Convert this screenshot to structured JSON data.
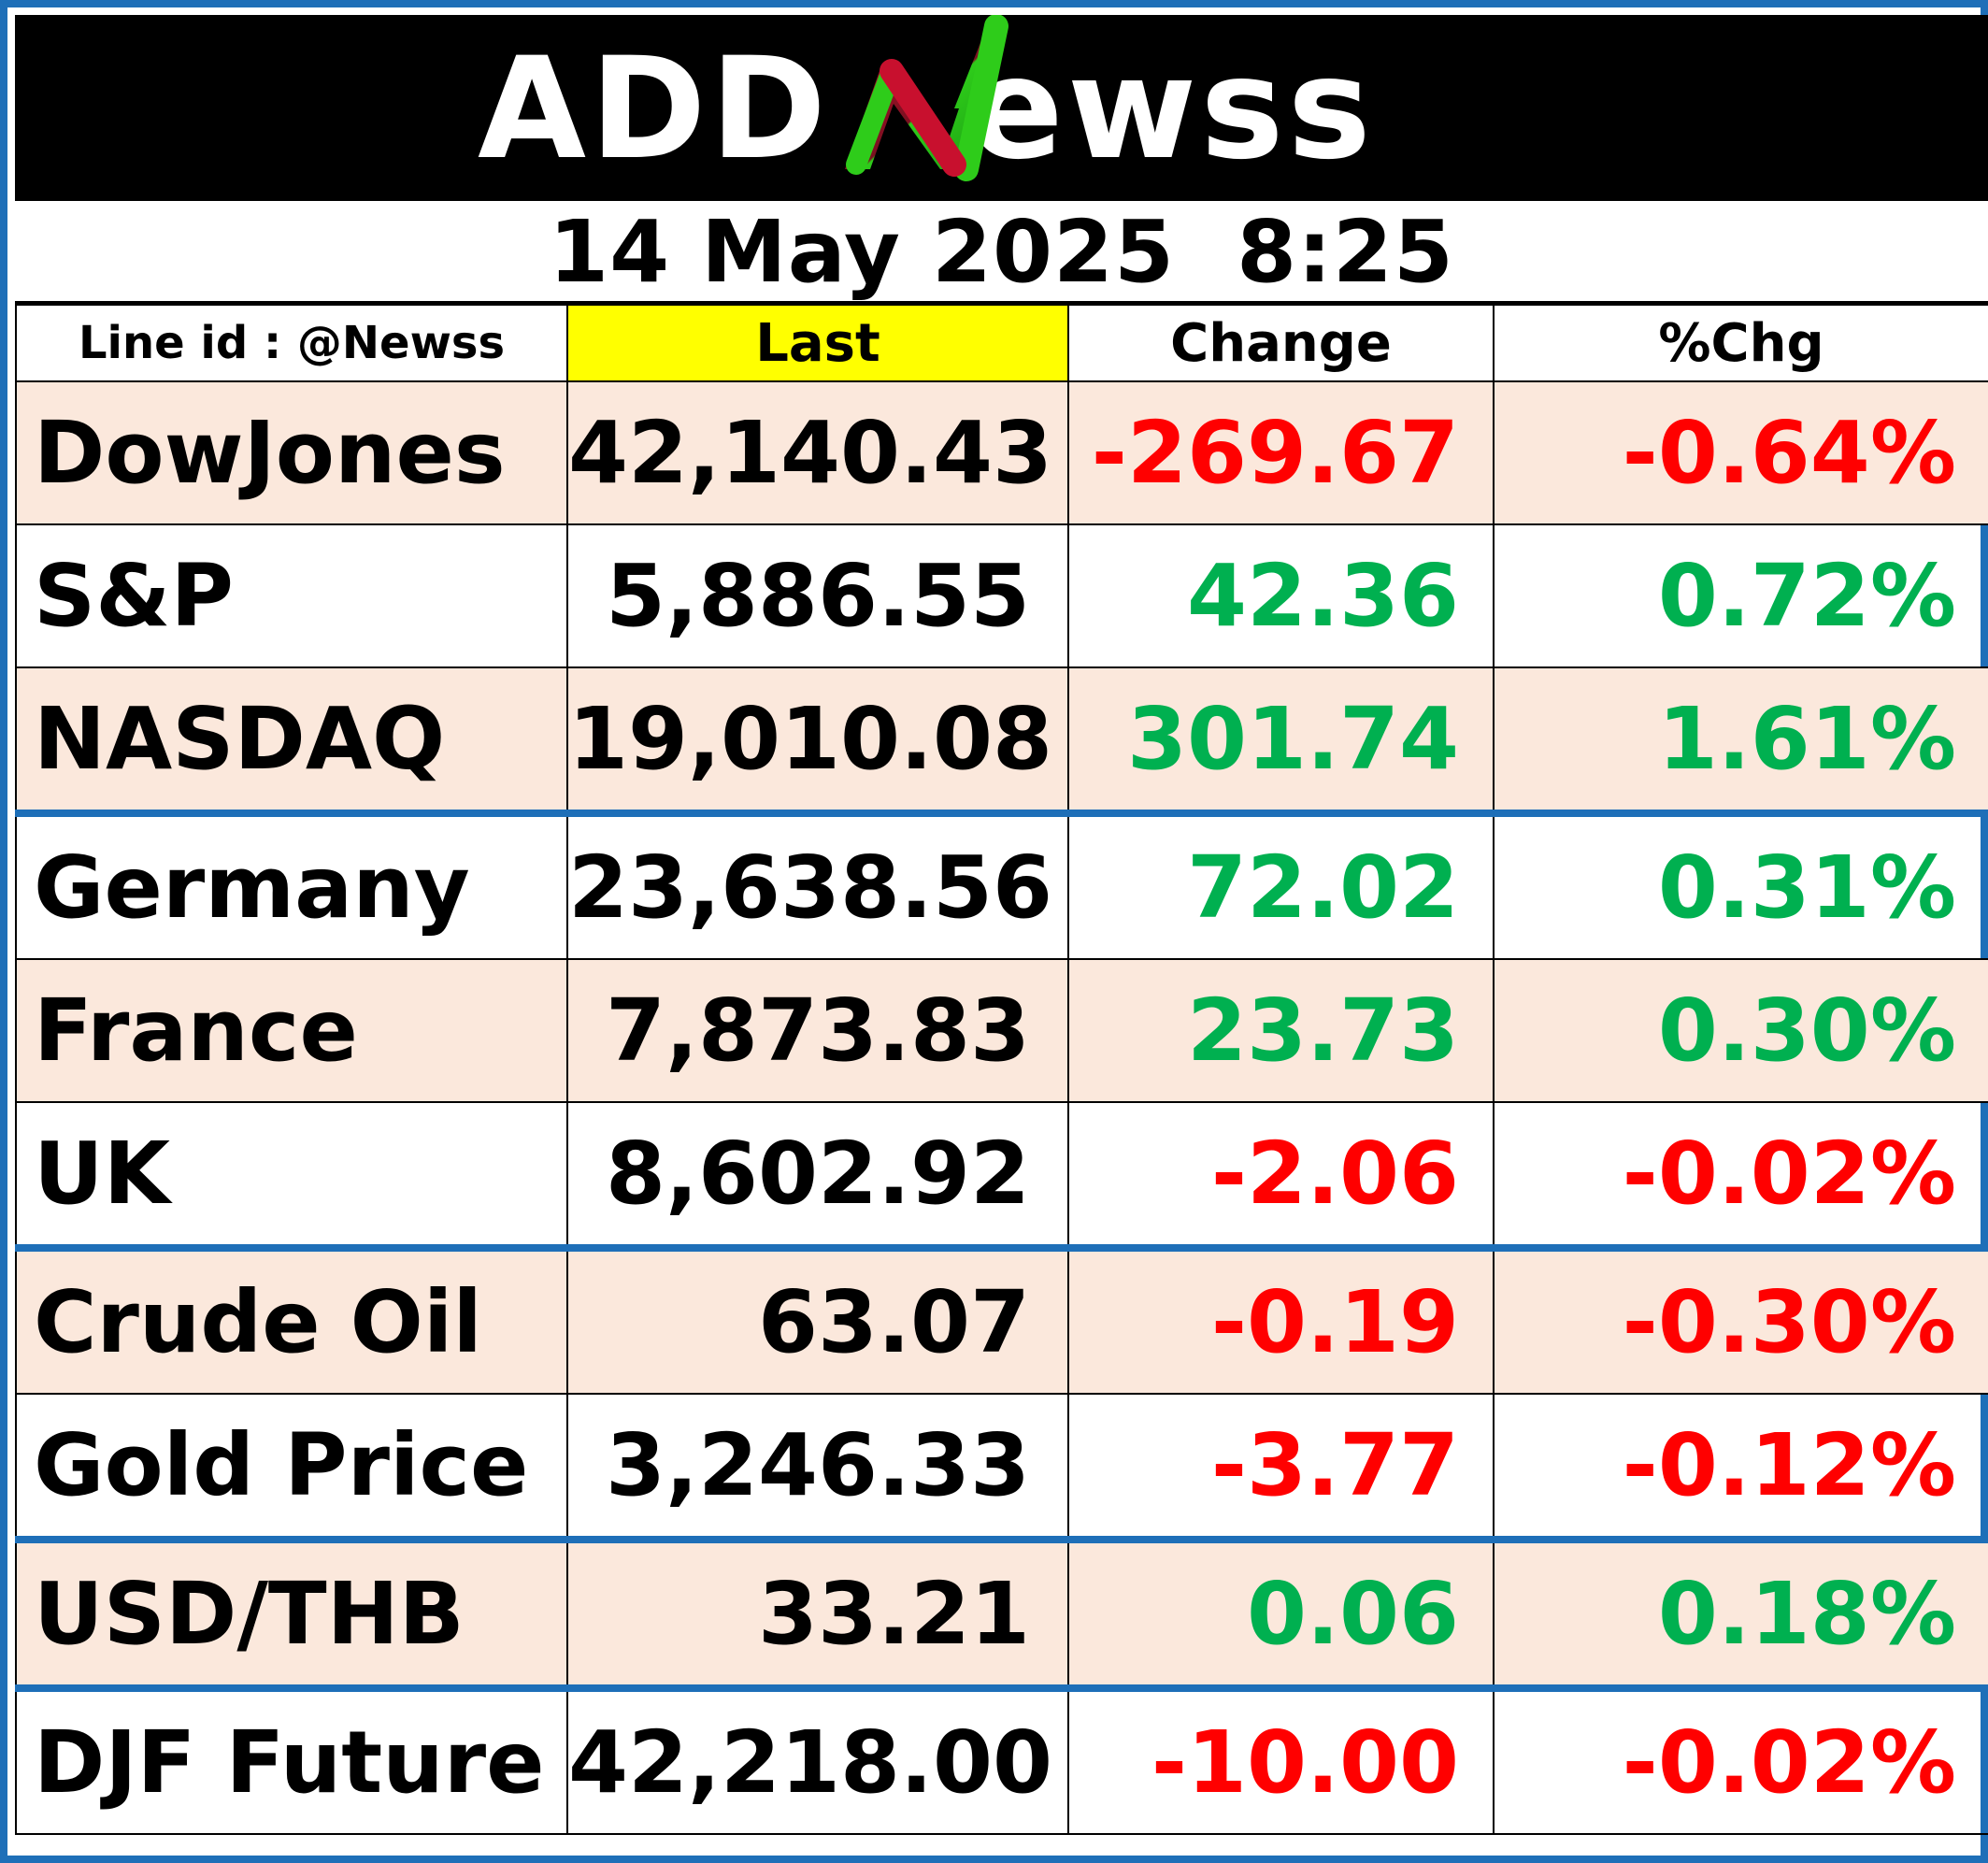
{
  "brand": {
    "logo_text": "ADDNewss",
    "accent_red": "#c8102e",
    "accent_green": "#2ecc1a"
  },
  "timestamp": "14 May 2025  8:25",
  "table": {
    "headers": {
      "name": "Line id : @Newss",
      "last": "Last",
      "change": "Change",
      "pct": "%Chg"
    },
    "rows": [
      {
        "name": "DowJones",
        "last": "42,140.43",
        "change": "-269.67",
        "pct": "-0.64%",
        "dir": "neg"
      },
      {
        "name": "S&P",
        "last": "5,886.55",
        "change": "42.36",
        "pct": "0.72%",
        "dir": "pos"
      },
      {
        "name": "NASDAQ",
        "last": "19,010.08",
        "change": "301.74",
        "pct": "1.61%",
        "dir": "pos"
      },
      {
        "name": "Germany",
        "last": "23,638.56",
        "change": "72.02",
        "pct": "0.31%",
        "dir": "pos"
      },
      {
        "name": "France",
        "last": "7,873.83",
        "change": "23.73",
        "pct": "0.30%",
        "dir": "pos"
      },
      {
        "name": "UK",
        "last": "8,602.92",
        "change": "-2.06",
        "pct": "-0.02%",
        "dir": "neg"
      },
      {
        "name": "Crude Oil",
        "last": "63.07",
        "change": "-0.19",
        "pct": "-0.30%",
        "dir": "neg"
      },
      {
        "name": "Gold Price",
        "last": "3,246.33",
        "change": "-3.77",
        "pct": "-0.12%",
        "dir": "neg"
      },
      {
        "name": "USD/THB",
        "last": "33.21",
        "change": "0.06",
        "pct": "0.18%",
        "dir": "pos"
      },
      {
        "name": "DJF Future",
        "last": "42,218.00",
        "change": "-10.00",
        "pct": "-0.02%",
        "dir": "neg"
      }
    ]
  },
  "colors": {
    "border_blue": "#1e6fb8",
    "row_shade": "#fbe8dc",
    "last_header_bg": "#ffff00",
    "negative": "#ff0000",
    "positive": "#00b050"
  }
}
